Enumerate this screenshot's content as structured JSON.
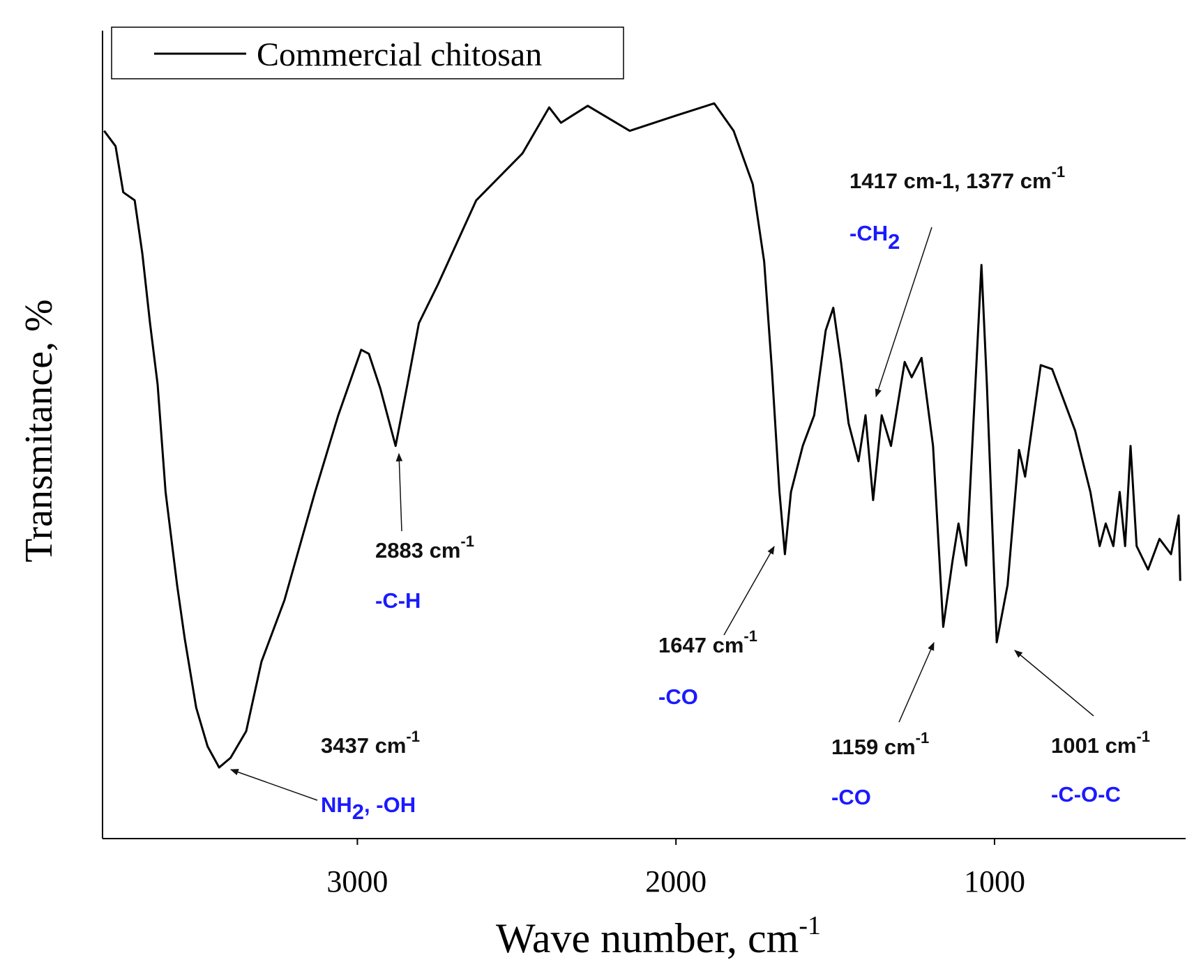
{
  "chart_data": {
    "type": "line",
    "xlabel": "Wave number, cm",
    "xlabel_sup": "-1",
    "ylabel": "Transmitance, %",
    "x": [
      3795,
      3759,
      3735,
      3699,
      3675,
      3651,
      3627,
      3602,
      3566,
      3542,
      3506,
      3470,
      3434,
      3398,
      3349,
      3301,
      3229,
      3133,
      3060,
      2988,
      2964,
      2928,
      2880,
      2843,
      2807,
      2747,
      2627,
      2482,
      2398,
      2361,
      2325,
      2277,
      2145,
      1999,
      1880,
      1819,
      1759,
      1723,
      1699,
      1675,
      1658,
      1639,
      1602,
      1566,
      1530,
      1506,
      1482,
      1458,
      1427,
      1405,
      1381,
      1354,
      1325,
      1282,
      1260,
      1229,
      1193,
      1161,
      1132,
      1113,
      1089,
      1060,
      1041,
      1024,
      993,
      959,
      923,
      904,
      855,
      819,
      747,
      699,
      670,
      651,
      627,
      607,
      590,
      573,
      554,
      518,
      482,
      446,
      422,
      417
    ],
    "series": [
      {
        "name": "Commercial chitosan",
        "color": "#000000",
        "values": [
          87.6,
          85.7,
          80,
          79,
          72.4,
          63.8,
          56.2,
          42.9,
          31.4,
          24.8,
          16.2,
          11.4,
          8.8,
          10,
          13.3,
          21.9,
          29.5,
          42.9,
          52.4,
          60.5,
          60,
          55.7,
          48.6,
          56.2,
          63.8,
          68.6,
          79,
          84.8,
          90.5,
          88.6,
          89.5,
          90.7,
          87.6,
          89.5,
          91,
          87.6,
          81,
          71.4,
          58.1,
          42.9,
          35.2,
          42.9,
          48.6,
          52.4,
          62.9,
          65.7,
          59,
          51.4,
          46.7,
          52.4,
          41.9,
          52.4,
          48.6,
          59,
          57.1,
          59.5,
          48.6,
          26.2,
          34.3,
          39,
          33.8,
          56.2,
          71,
          56.2,
          24.3,
          31.4,
          48.1,
          44.8,
          58.6,
          58.1,
          50.5,
          42.9,
          36.2,
          39,
          36.2,
          42.9,
          36.2,
          48.6,
          36.2,
          33.3,
          37.1,
          35.2,
          40,
          31.9
        ]
      }
    ],
    "xlim": [
      3800,
      400
    ],
    "xticks": [
      3000,
      2000,
      1000
    ],
    "ylim": [
      0,
      100
    ],
    "legend": "top-left",
    "annotations": [
      {
        "label": "2883 cm",
        "label_sup": "-1",
        "group": "-C-H"
      },
      {
        "label": "1647 cm",
        "label_sup": "-1",
        "group": "-CO"
      },
      {
        "label": "1417 cm-1, 1377 cm",
        "label_sup": "-1",
        "group": "-CH",
        "group_sub": "2"
      },
      {
        "label": "3437 cm",
        "label_sup": "-1",
        "group": "NH",
        "group_sub": "2",
        "group_rest": ", -OH"
      },
      {
        "label": "1159 cm",
        "label_sup": "-1",
        "group": "-CO"
      },
      {
        "label": "1001 cm",
        "label_sup": "-1",
        "group": "-C-O-C"
      }
    ]
  }
}
